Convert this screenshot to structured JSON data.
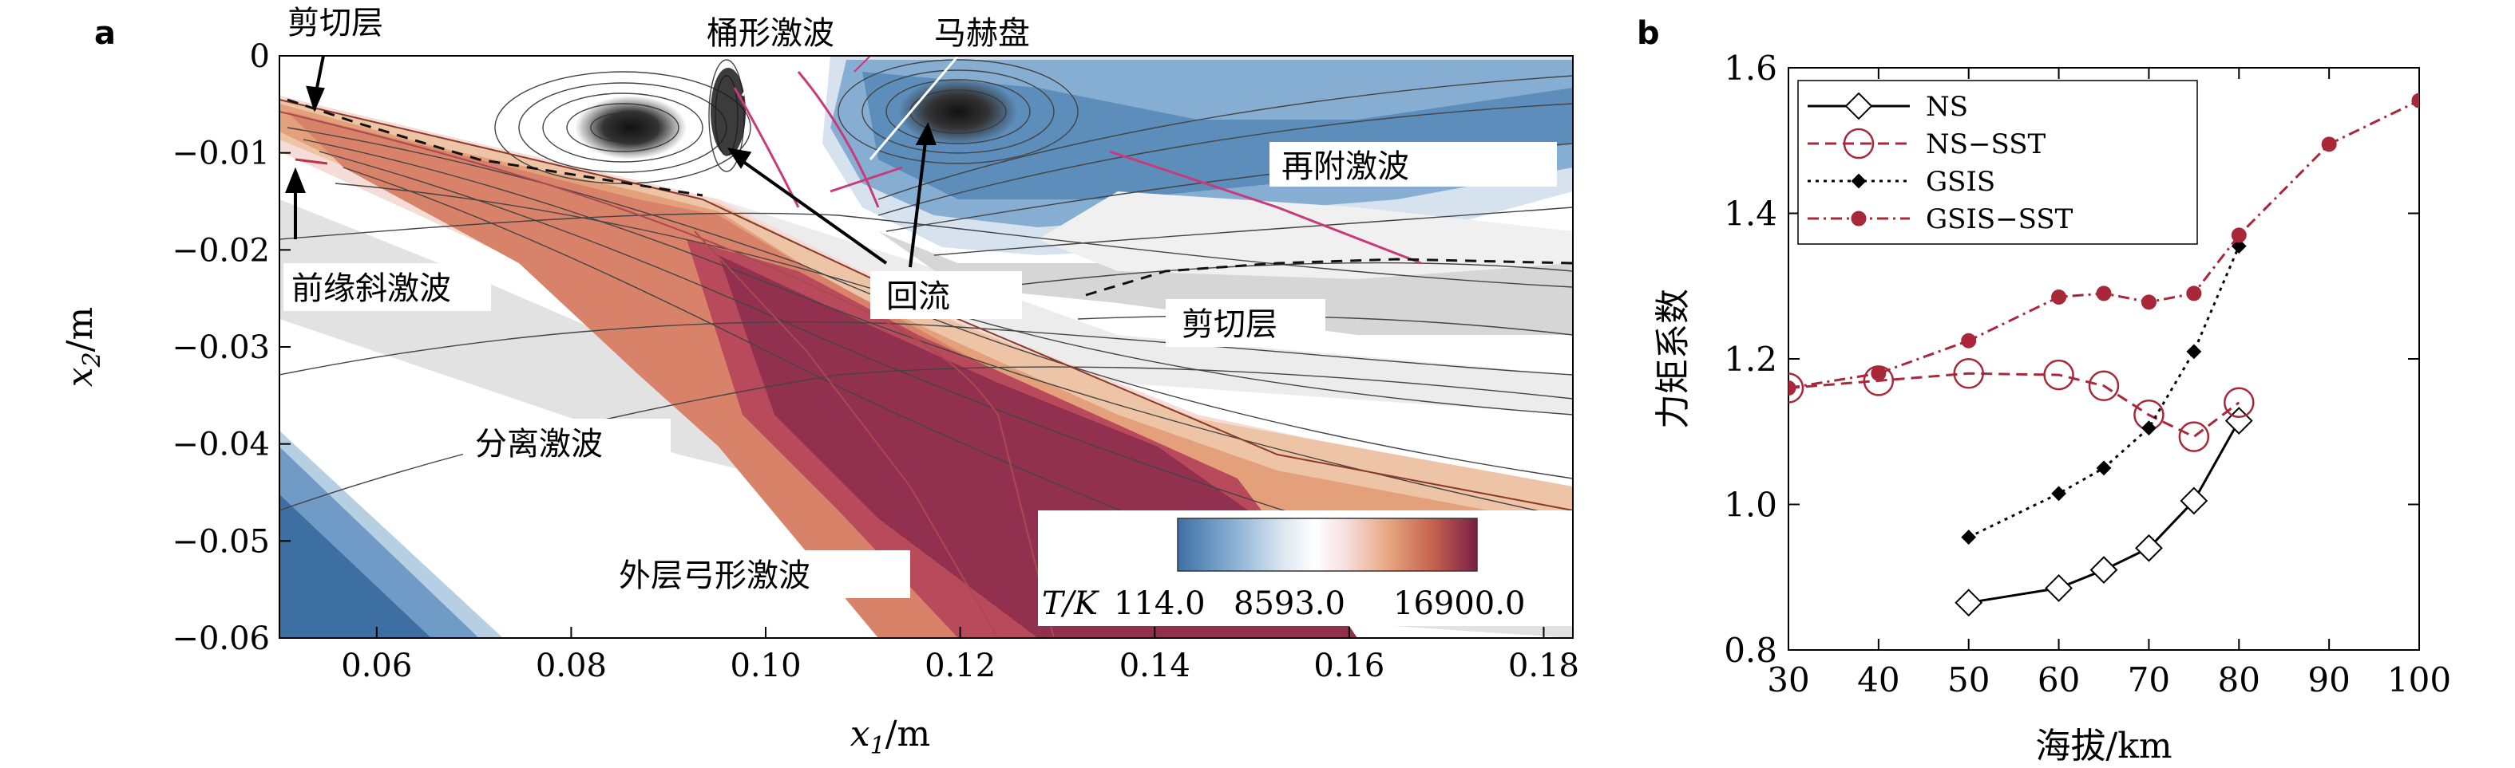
{
  "panel_a": {
    "letter": "a",
    "annotations": {
      "shear_layer_top": "剪切层",
      "barrel_shock": "桶形激波",
      "mach_disk": "马赫盘",
      "reattach_shock": "再附激波",
      "leading_oblique": "前缘斜激波",
      "recirculation": "回流",
      "shear_layer_bottom": "剪切层",
      "separation_shock": "分离激波",
      "outer_bow_shock": "外层弓形激波"
    },
    "colorbar": {
      "label": "T/K",
      "ticks": [
        "114.0",
        "8593.0",
        "16900.0"
      ],
      "colors": [
        "#3e6fa3",
        "#5c8dbb",
        "#86aed2",
        "#b6cfe3",
        "#dfe9f1",
        "#f5f5f5",
        "#ffffff",
        "#f7dfe0",
        "#f2c6b2",
        "#e7a882",
        "#d98767",
        "#c5634f",
        "#ad4453",
        "#92304f",
        "#7a1f45"
      ]
    }
  },
  "panel_b": {
    "letter": "b"
  },
  "chart_data": [
    {
      "type": "heatmap",
      "xlabel": "x1/m",
      "ylabel": "x2/m",
      "xlim": [
        0.05,
        0.183
      ],
      "ylim": [
        -0.06,
        0
      ],
      "x_ticks": [
        "0.06",
        "0.08",
        "0.10",
        "0.12",
        "0.14",
        "0.16",
        "0.18"
      ],
      "y_ticks": [
        "0",
        "−0.01",
        "−0.02",
        "−0.03",
        "−0.04",
        "−0.05",
        "−0.06"
      ],
      "x_tick_values": [
        0.06,
        0.08,
        0.1,
        0.12,
        0.14,
        0.16,
        0.18
      ],
      "y_tick_values": [
        0,
        -0.01,
        -0.02,
        -0.03,
        -0.04,
        -0.05,
        -0.06
      ],
      "colorbar_range": [
        114.0,
        16900.0
      ]
    },
    {
      "type": "line",
      "xlabel": "海拔/km",
      "ylabel": "力矩系数",
      "xlim": [
        30,
        100
      ],
      "ylim": [
        0.8,
        1.6
      ],
      "x_ticks": [
        "30",
        "40",
        "50",
        "60",
        "70",
        "80",
        "90",
        "100"
      ],
      "y_ticks": [
        "0.8",
        "1.0",
        "1.2",
        "1.4",
        "1.6"
      ],
      "x_tick_values": [
        30,
        40,
        50,
        60,
        70,
        80,
        90,
        100
      ],
      "y_tick_values": [
        0.8,
        1.0,
        1.2,
        1.4,
        1.6
      ],
      "legend_position": "top-left",
      "series": [
        {
          "name": "NS",
          "color": "#000000",
          "dash": "solid",
          "marker": "diamond-open",
          "x": [
            50,
            60,
            65,
            70,
            75,
            80
          ],
          "y": [
            0.865,
            0.885,
            0.91,
            0.94,
            1.005,
            1.115
          ]
        },
        {
          "name": "NS−SST",
          "color": "#a8283a",
          "dash": "dashed",
          "marker": "circle-open",
          "x": [
            30,
            40,
            50,
            60,
            65,
            70,
            75,
            80
          ],
          "y": [
            1.16,
            1.17,
            1.18,
            1.178,
            1.163,
            1.123,
            1.093,
            1.14
          ]
        },
        {
          "name": "GSIS",
          "color": "#000000",
          "dash": "dotted",
          "marker": "diamond-filled",
          "x": [
            50,
            60,
            65,
            70,
            75,
            80
          ],
          "y": [
            0.955,
            1.015,
            1.05,
            1.105,
            1.21,
            1.355
          ]
        },
        {
          "name": "GSIS−SST",
          "color": "#a8283a",
          "dash": "dashdot",
          "marker": "circle-filled",
          "x": [
            30,
            40,
            50,
            60,
            65,
            70,
            75,
            80,
            90,
            100
          ],
          "y": [
            1.16,
            1.18,
            1.225,
            1.285,
            1.29,
            1.278,
            1.29,
            1.37,
            1.495,
            1.555
          ]
        }
      ]
    }
  ]
}
